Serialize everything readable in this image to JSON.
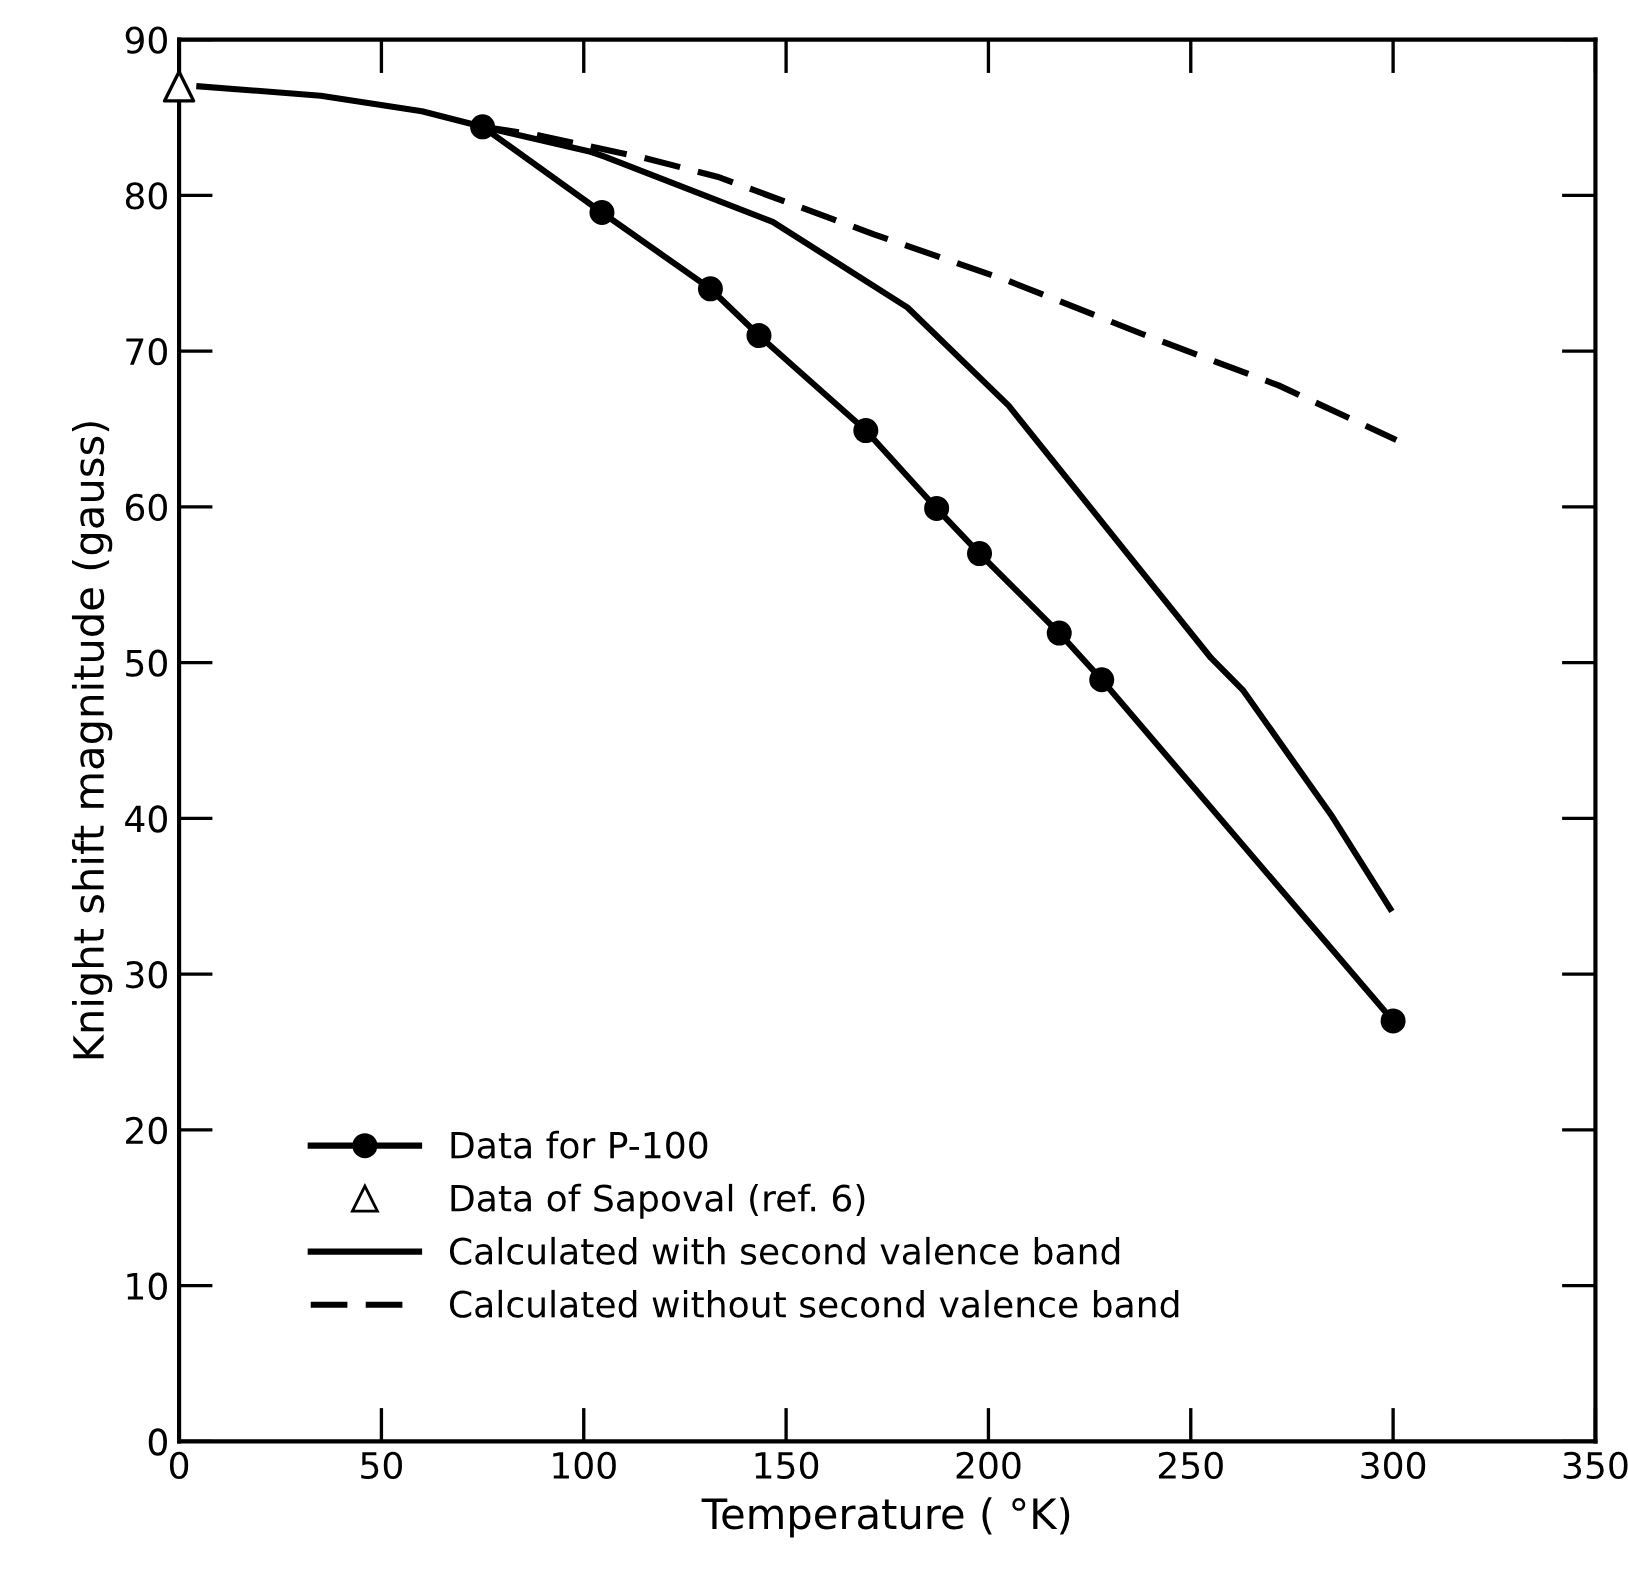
{
  "chart_data": {
    "type": "line",
    "xlabel": "Temperature ( °K)",
    "ylabel": "Knight shift magnitude (gauss)",
    "xlim": [
      0,
      350
    ],
    "ylim": [
      0,
      90
    ],
    "xticks": [
      0,
      50,
      100,
      150,
      200,
      250,
      300,
      350
    ],
    "yticks": [
      0,
      10,
      20,
      30,
      40,
      50,
      60,
      70,
      80,
      90
    ],
    "grid": false,
    "legend": "bottom left",
    "series": [
      {
        "name": "Data for P-100",
        "marker": "circle",
        "line_style": "solid",
        "color": "#000000",
        "x": [
          75,
          104.5,
          131.3,
          143.3,
          169.7,
          187.2,
          197.8,
          217.5,
          228,
          300
        ],
        "values": [
          84.4,
          78.9,
          74.0,
          71.0,
          64.9,
          59.9,
          57.0,
          51.9,
          48.9,
          27.0
        ]
      },
      {
        "name": "Data of Sapoval (ref. 6)",
        "type": "scatter",
        "marker": "triangle",
        "color": "#000000",
        "x": [
          0
        ],
        "values": [
          87.0
        ]
      },
      {
        "name": "Calculated with second valence band",
        "marker": "none",
        "line_style": "solid",
        "color": "#000000",
        "x": [
          5,
          35,
          60,
          75,
          101.7,
          105,
          146.7,
          180,
          205,
          230,
          255,
          263,
          285,
          299.3
        ],
        "values": [
          87.0,
          86.4,
          85.4,
          84.4,
          82.8,
          82.5,
          78.3,
          72.8,
          66.5,
          58.4,
          50.3,
          48.2,
          40.1,
          34.2
        ]
      },
      {
        "name": "Calculated without second valence band",
        "marker": "none",
        "line_style": "dashed",
        "color": "#000000",
        "x": [
          75,
          88,
          115,
          133,
          171.7,
          205,
          238,
          271.7,
          300.8
        ],
        "values": [
          84.4,
          83.9,
          82.4,
          81.2,
          77.5,
          74.5,
          71.1,
          67.8,
          64.3
        ]
      }
    ]
  }
}
